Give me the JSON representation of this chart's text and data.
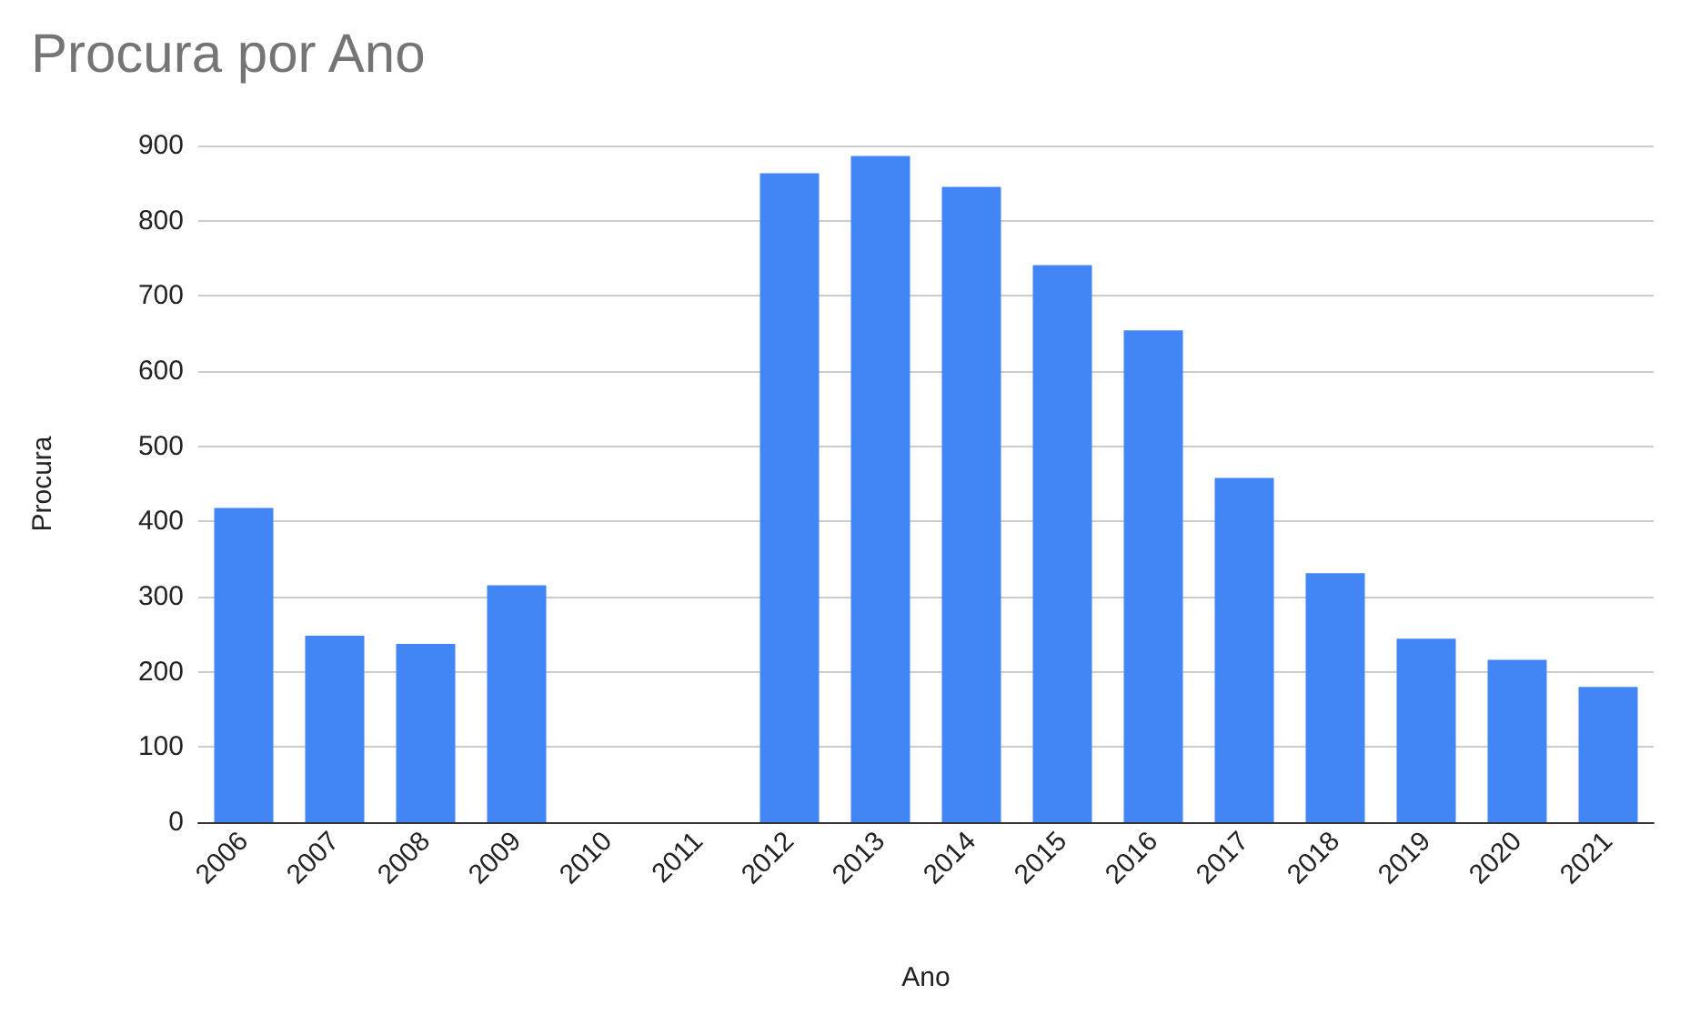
{
  "chart_data": {
    "type": "bar",
    "title": "Procura por Ano",
    "xlabel": "Ano",
    "ylabel": "Procura",
    "categories": [
      "2006",
      "2007",
      "2008",
      "2009",
      "2010",
      "2011",
      "2012",
      "2013",
      "2014",
      "2015",
      "2016",
      "2017",
      "2018",
      "2019",
      "2020",
      "2021"
    ],
    "values": [
      418,
      248,
      237,
      315,
      0,
      0,
      863,
      886,
      845,
      741,
      654,
      458,
      331,
      244,
      216,
      180
    ],
    "color": "#4285f4",
    "ylim": [
      0,
      900
    ],
    "yticks": [
      0,
      100,
      200,
      300,
      400,
      500,
      600,
      700,
      800,
      900
    ],
    "grid": "y"
  }
}
